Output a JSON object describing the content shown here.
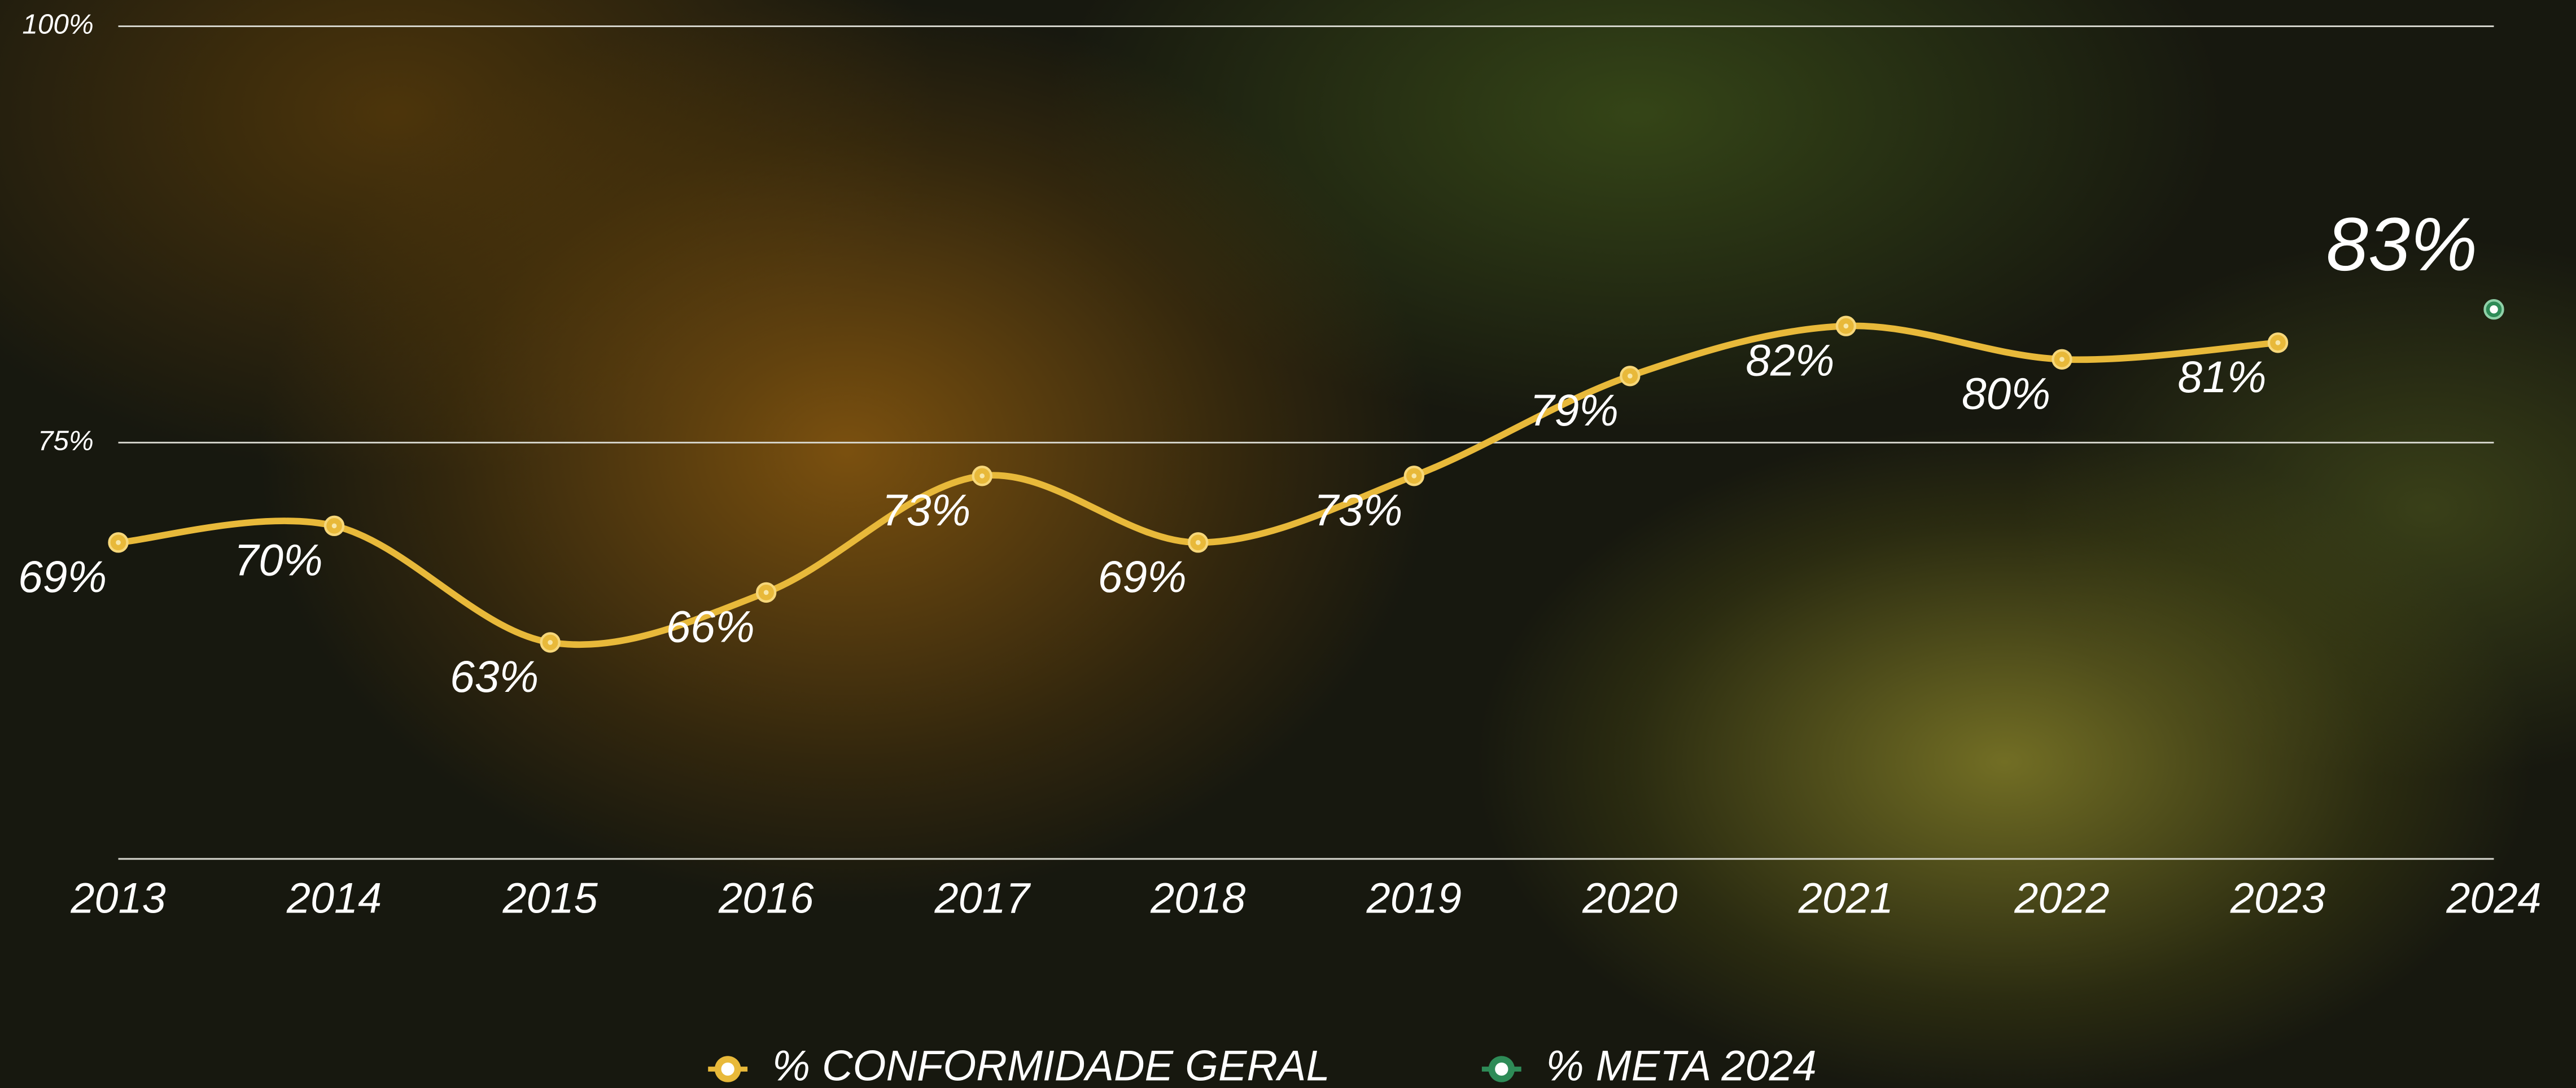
{
  "chart_data": {
    "type": "line",
    "categories": [
      "2013",
      "2014",
      "2015",
      "2016",
      "2017",
      "2018",
      "2019",
      "2020",
      "2021",
      "2022",
      "2023",
      "2024"
    ],
    "series": [
      {
        "name": "% CONFORMIDADE GERAL",
        "color": "#e8b93a",
        "values": [
          69,
          70,
          63,
          66,
          73,
          69,
          73,
          79,
          82,
          80,
          81,
          null
        ],
        "value_labels": [
          "69%",
          "70%",
          "63%",
          "66%",
          "73%",
          "69%",
          "73%",
          "79%",
          "82%",
          "80%",
          "81%",
          null
        ]
      },
      {
        "name": "% META 2024",
        "color": "#2e8b57",
        "values": [
          null,
          null,
          null,
          null,
          null,
          null,
          null,
          null,
          null,
          null,
          null,
          83
        ],
        "value_labels": [
          null,
          null,
          null,
          null,
          null,
          null,
          null,
          null,
          null,
          null,
          null,
          "83%"
        ]
      }
    ],
    "ylim": [
      50,
      100
    ],
    "yticks": [
      {
        "value": 75,
        "label": "75%"
      },
      {
        "value": 100,
        "label": "100%"
      }
    ],
    "grid": true
  }
}
